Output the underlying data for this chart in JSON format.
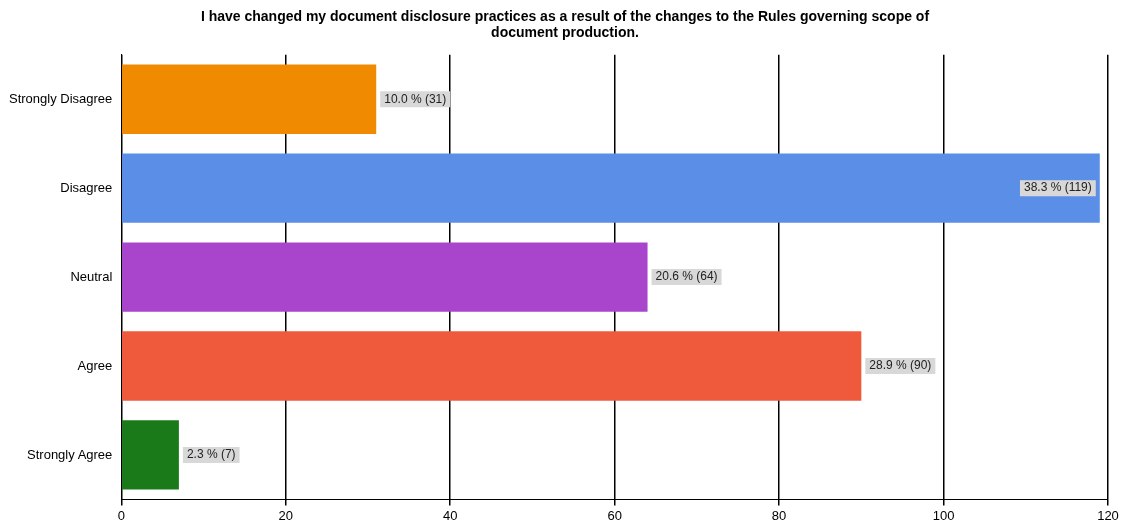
{
  "chart_data": {
    "type": "bar",
    "orientation": "horizontal",
    "title": "I have changed my document disclosure practices as a result of the changes to the Rules governing scope of document production.",
    "categories": [
      "Strongly Disagree",
      "Disagree",
      "Neutral",
      "Agree",
      "Strongly Agree"
    ],
    "values": [
      31,
      119,
      64,
      90,
      7
    ],
    "colors": [
      "#f08a00",
      "#5b8ee6",
      "#a845cc",
      "#f05a3c",
      "#1a7a1a"
    ],
    "value_labels": [
      "10.0 % (31)",
      "38.3 % (119)",
      "20.6 % (64)",
      "28.9 % (90)",
      "2.3 % (7)"
    ],
    "xlim": [
      0,
      120
    ],
    "xticks": [
      0,
      20,
      40,
      60,
      80,
      100,
      120
    ],
    "grid": "x",
    "legend": false
  }
}
